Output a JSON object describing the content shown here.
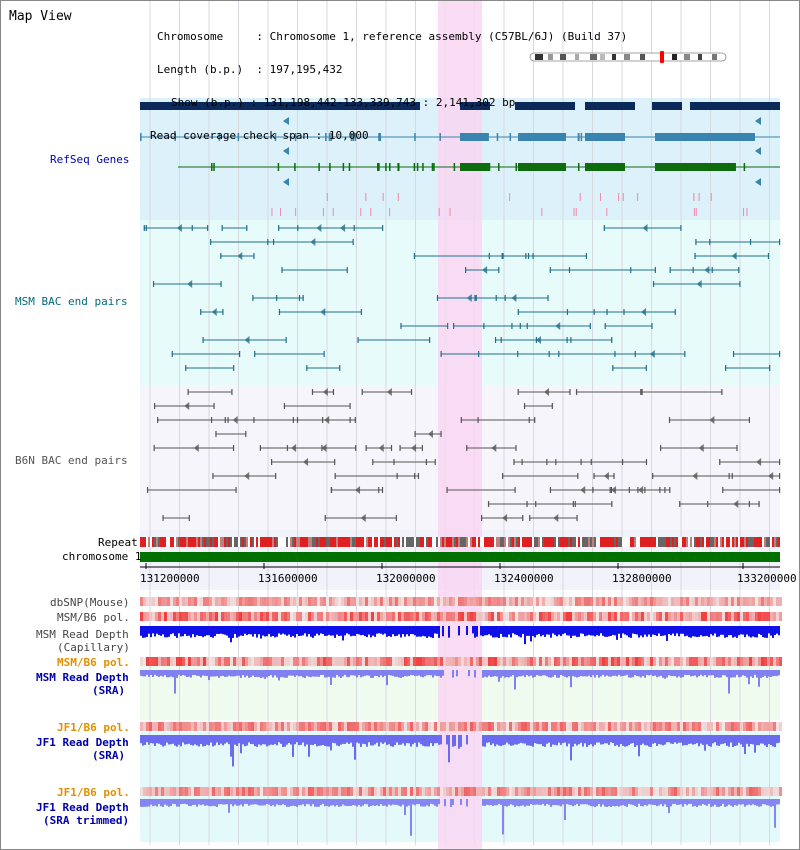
{
  "page": {
    "title": "Map View"
  },
  "info": {
    "chromosome_key": "Chromosome",
    "chromosome_val": "Chromosome 1, reference assembly (C57BL/6J) (Build 37)",
    "length_key": "Length (b.p.)",
    "length_val": "197,195,432",
    "show_key": "Show (b.p.)",
    "show_val": "131,198,442-133,339,743 : 2,141,302 bp",
    "coverage_key": "Read coverage check span",
    "coverage_val": "10,000"
  },
  "tracks": {
    "refseq": "RefSeq Genes",
    "msm_bac": "MSM BAC end pairs",
    "b6n_bac": "B6N BAC end pairs",
    "repeat": "Repeat",
    "chromosome": "chromosome 1",
    "dbsnp": "dbSNP(Mouse)",
    "msm_b6_pol": "MSM/B6 pol.",
    "msm_depth_cap_1": "MSM Read Depth",
    "msm_depth_cap_2": "(Capillary)",
    "msm_b6_pol_2": "MSM/B6 pol.",
    "msm_depth_sra_1": "MSM Read Depth",
    "msm_depth_sra_2": "(SRA)",
    "jf1_b6_pol": "JF1/B6 pol.",
    "jf1_depth_sra_1": "JF1 Read Depth",
    "jf1_depth_sra_2": "(SRA)",
    "jf1_b6_pol_2": "JF1/B6 pol.",
    "jf1_depth_trim_1": "JF1 Read Depth",
    "jf1_depth_trim_2": "(SRA trimmed)"
  },
  "axis": {
    "ticks": [
      "131200000",
      "131600000",
      "132000000",
      "132400000",
      "132800000",
      "133200000"
    ]
  },
  "colors": {
    "highlight": "#f9d6f2",
    "gene_navy": "#0b2a5a",
    "gene_teal": "#3a85b0",
    "gene_green": "#0e6b0e",
    "msm_bac": "#1f6f8b",
    "b6n_bac": "#555555",
    "chromosome": "#007000",
    "label_blue": "#0000aa",
    "label_teal": "#006b7a",
    "label_orange": "#e09000",
    "depth_blue": "#1010e8",
    "depth_light": "#6b6bf0"
  }
}
